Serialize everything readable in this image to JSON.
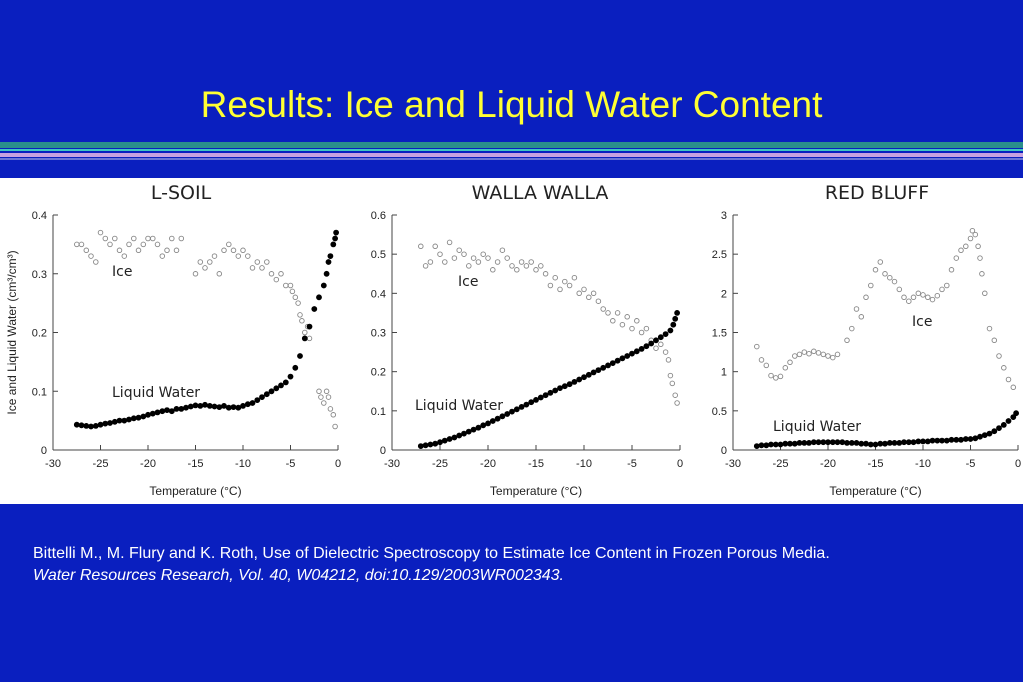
{
  "slide": {
    "title": "Results: Ice and Liquid Water Content",
    "citation_plain": "Bittelli M., M. Flury and K. Roth, Use of Dielectric Spectroscopy to Estimate Ice Content in Frozen Porous Media.",
    "citation_italic": "Water Resources Research, Vol. 40, W04212, doi:10.129/2003WR002343."
  },
  "colors": {
    "background": "#0a1fbf",
    "title": "#ffff33",
    "liquid_marker": "#000000",
    "ice_marker": "#888888"
  },
  "chart_data": [
    {
      "type": "scatter",
      "title": "L-SOIL",
      "xlabel": "Temperature (°C)",
      "ylabel": "Ice and Liquid Water  (cm³/cm³)",
      "xlim": [
        -30,
        0
      ],
      "ylim": [
        0,
        0.4
      ],
      "xticks": [
        "-30",
        "-25",
        "-20",
        "-15",
        "-10",
        "-5",
        "0"
      ],
      "yticks": [
        "0",
        "0.1",
        "0.2",
        "0.3",
        "0.4"
      ],
      "annotations": [
        "Ice",
        "Liquid Water"
      ],
      "series": [
        {
          "name": "Ice",
          "marker": "open",
          "x": [
            -27.5,
            -27,
            -26.5,
            -26,
            -25.5,
            -25,
            -24.5,
            -24,
            -23.5,
            -23,
            -22.5,
            -22,
            -21.5,
            -21,
            -20.5,
            -20,
            -19.5,
            -19,
            -18.5,
            -18,
            -17.5,
            -17,
            -16.5,
            -15,
            -14.5,
            -14,
            -13.5,
            -13,
            -12.5,
            -12,
            -11.5,
            -11,
            -10.5,
            -10,
            -9.5,
            -9,
            -8.5,
            -8,
            -7.5,
            -7,
            -6.5,
            -6,
            -5.5,
            -5,
            -4.8,
            -4.5,
            -4.2,
            -4,
            -3.8,
            -3.5,
            -3.2,
            -3,
            -2,
            -1.8,
            -1.5,
            -1.2,
            -1,
            -0.8,
            -0.5,
            -0.3
          ],
          "y": [
            0.35,
            0.35,
            0.34,
            0.33,
            0.32,
            0.37,
            0.36,
            0.35,
            0.36,
            0.34,
            0.33,
            0.35,
            0.36,
            0.34,
            0.35,
            0.36,
            0.36,
            0.35,
            0.33,
            0.34,
            0.36,
            0.34,
            0.36,
            0.3,
            0.32,
            0.31,
            0.32,
            0.33,
            0.3,
            0.34,
            0.35,
            0.34,
            0.33,
            0.34,
            0.33,
            0.31,
            0.32,
            0.31,
            0.32,
            0.3,
            0.29,
            0.3,
            0.28,
            0.28,
            0.27,
            0.26,
            0.25,
            0.23,
            0.22,
            0.2,
            0.21,
            0.19,
            0.1,
            0.09,
            0.08,
            0.1,
            0.09,
            0.07,
            0.06,
            0.04
          ]
        },
        {
          "name": "Liquid Water",
          "marker": "filled",
          "x": [
            -27.5,
            -27,
            -26.5,
            -26,
            -25.5,
            -25,
            -24.5,
            -24,
            -23.5,
            -23,
            -22.5,
            -22,
            -21.5,
            -21,
            -20.5,
            -20,
            -19.5,
            -19,
            -18.5,
            -18,
            -17.5,
            -17,
            -16.5,
            -16,
            -15.5,
            -15,
            -14.5,
            -14,
            -13.5,
            -13,
            -12.5,
            -12,
            -11.5,
            -11,
            -10.5,
            -10,
            -9.5,
            -9,
            -8.5,
            -8,
            -7.5,
            -7,
            -6.5,
            -6,
            -5.5,
            -5,
            -4.5,
            -4,
            -3.5,
            -3,
            -2.5,
            -2,
            -1.5,
            -1.2,
            -1,
            -0.8,
            -0.5,
            -0.3,
            -0.2
          ],
          "y": [
            0.043,
            0.042,
            0.041,
            0.04,
            0.041,
            0.043,
            0.045,
            0.046,
            0.048,
            0.05,
            0.05,
            0.052,
            0.054,
            0.055,
            0.057,
            0.06,
            0.062,
            0.064,
            0.066,
            0.068,
            0.066,
            0.07,
            0.07,
            0.072,
            0.074,
            0.076,
            0.075,
            0.077,
            0.075,
            0.074,
            0.073,
            0.075,
            0.072,
            0.073,
            0.072,
            0.075,
            0.078,
            0.08,
            0.085,
            0.09,
            0.095,
            0.1,
            0.105,
            0.11,
            0.115,
            0.125,
            0.14,
            0.16,
            0.19,
            0.21,
            0.24,
            0.26,
            0.28,
            0.3,
            0.32,
            0.33,
            0.35,
            0.36,
            0.37
          ]
        }
      ]
    },
    {
      "type": "scatter",
      "title": "WALLA WALLA",
      "xlabel": "Temperature (°C)",
      "ylabel": "",
      "xlim": [
        -30,
        0
      ],
      "ylim": [
        0,
        0.6
      ],
      "xticks": [
        "-30",
        "-25",
        "-20",
        "-15",
        "-10",
        "-5",
        "0"
      ],
      "yticks": [
        "0",
        "0.1",
        "0.2",
        "0.3",
        "0.4",
        "0.5",
        "0.6"
      ],
      "annotations": [
        "Ice",
        "Liquid Water"
      ],
      "series": [
        {
          "name": "Ice",
          "marker": "open",
          "x": [
            -27,
            -26.5,
            -26,
            -25.5,
            -25,
            -24.5,
            -24,
            -23.5,
            -23,
            -22.5,
            -22,
            -21.5,
            -21,
            -20.5,
            -20,
            -19.5,
            -19,
            -18.5,
            -18,
            -17.5,
            -17,
            -16.5,
            -16,
            -15.5,
            -15,
            -14.5,
            -14,
            -13.5,
            -13,
            -12.5,
            -12,
            -11.5,
            -11,
            -10.5,
            -10,
            -9.5,
            -9,
            -8.5,
            -8,
            -7.5,
            -7,
            -6.5,
            -6,
            -5.5,
            -5,
            -4.5,
            -4,
            -3.5,
            -3,
            -2.5,
            -2,
            -1.5,
            -1.2,
            -1,
            -0.8,
            -0.5,
            -0.3
          ],
          "y": [
            0.52,
            0.47,
            0.48,
            0.52,
            0.5,
            0.48,
            0.53,
            0.49,
            0.51,
            0.5,
            0.47,
            0.49,
            0.48,
            0.5,
            0.49,
            0.46,
            0.48,
            0.51,
            0.49,
            0.47,
            0.46,
            0.48,
            0.47,
            0.48,
            0.46,
            0.47,
            0.45,
            0.42,
            0.44,
            0.41,
            0.43,
            0.42,
            0.44,
            0.4,
            0.41,
            0.39,
            0.4,
            0.38,
            0.36,
            0.35,
            0.33,
            0.35,
            0.32,
            0.34,
            0.31,
            0.33,
            0.3,
            0.31,
            0.28,
            0.26,
            0.27,
            0.25,
            0.23,
            0.19,
            0.17,
            0.14,
            0.12
          ]
        },
        {
          "name": "Liquid Water",
          "marker": "filled",
          "x": [
            -27,
            -26.5,
            -26,
            -25.5,
            -25,
            -24.5,
            -24,
            -23.5,
            -23,
            -22.5,
            -22,
            -21.5,
            -21,
            -20.5,
            -20,
            -19.5,
            -19,
            -18.5,
            -18,
            -17.5,
            -17,
            -16.5,
            -16,
            -15.5,
            -15,
            -14.5,
            -14,
            -13.5,
            -13,
            -12.5,
            -12,
            -11.5,
            -11,
            -10.5,
            -10,
            -9.5,
            -9,
            -8.5,
            -8,
            -7.5,
            -7,
            -6.5,
            -6,
            -5.5,
            -5,
            -4.5,
            -4,
            -3.5,
            -3,
            -2.5,
            -2,
            -1.5,
            -1,
            -0.7,
            -0.5,
            -0.3
          ],
          "y": [
            0.01,
            0.012,
            0.014,
            0.016,
            0.02,
            0.024,
            0.028,
            0.032,
            0.037,
            0.042,
            0.047,
            0.052,
            0.057,
            0.063,
            0.068,
            0.074,
            0.08,
            0.086,
            0.092,
            0.098,
            0.104,
            0.11,
            0.116,
            0.122,
            0.128,
            0.134,
            0.14,
            0.146,
            0.152,
            0.158,
            0.163,
            0.168,
            0.174,
            0.18,
            0.186,
            0.192,
            0.198,
            0.204,
            0.21,
            0.216,
            0.222,
            0.228,
            0.234,
            0.24,
            0.246,
            0.252,
            0.258,
            0.265,
            0.272,
            0.28,
            0.288,
            0.296,
            0.305,
            0.32,
            0.335,
            0.35
          ]
        }
      ]
    },
    {
      "type": "scatter",
      "title": "RED BLUFF",
      "xlabel": "Temperature (°C)",
      "ylabel": "",
      "xlim": [
        -30,
        0
      ],
      "ylim": [
        0,
        3
      ],
      "xticks": [
        "-30",
        "-25",
        "-20",
        "-15",
        "-10",
        "-5",
        "0"
      ],
      "yticks": [
        "0",
        "0.5",
        "1",
        "1.5",
        "2",
        "2.5",
        "3"
      ],
      "annotations": [
        "Ice",
        "Liquid Water"
      ],
      "series": [
        {
          "name": "Ice",
          "marker": "open",
          "x": [
            -27.5,
            -27,
            -26.5,
            -26,
            -25.5,
            -25,
            -24.5,
            -24,
            -23.5,
            -23,
            -22.5,
            -22,
            -21.5,
            -21,
            -20.5,
            -20,
            -19.5,
            -19,
            -18,
            -17.5,
            -17,
            -16.5,
            -16,
            -15.5,
            -15,
            -14.5,
            -14,
            -13.5,
            -13,
            -12.5,
            -12,
            -11.5,
            -11,
            -10.5,
            -10,
            -9.5,
            -9,
            -8.5,
            -8,
            -7.5,
            -7,
            -6.5,
            -6,
            -5.5,
            -5,
            -4.8,
            -4.5,
            -4.2,
            -4,
            -3.8,
            -3.5,
            -3,
            -2.5,
            -2,
            -1.5,
            -1,
            -0.5
          ],
          "y": [
            1.32,
            1.15,
            1.08,
            0.95,
            0.92,
            0.94,
            1.05,
            1.12,
            1.2,
            1.22,
            1.25,
            1.23,
            1.26,
            1.24,
            1.22,
            1.2,
            1.18,
            1.22,
            1.4,
            1.55,
            1.8,
            1.7,
            1.95,
            2.1,
            2.3,
            2.4,
            2.25,
            2.2,
            2.15,
            2.05,
            1.95,
            1.9,
            1.95,
            2.0,
            1.98,
            1.95,
            1.92,
            1.97,
            2.05,
            2.1,
            2.3,
            2.45,
            2.55,
            2.6,
            2.7,
            2.8,
            2.75,
            2.6,
            2.45,
            2.25,
            2.0,
            1.55,
            1.4,
            1.2,
            1.05,
            0.9,
            0.8
          ]
        },
        {
          "name": "Liquid Water",
          "marker": "filled",
          "x": [
            -27.5,
            -27,
            -26.5,
            -26,
            -25.5,
            -25,
            -24.5,
            -24,
            -23.5,
            -23,
            -22.5,
            -22,
            -21.5,
            -21,
            -20.5,
            -20,
            -19.5,
            -19,
            -18.5,
            -18,
            -17.5,
            -17,
            -16.5,
            -16,
            -15.5,
            -15,
            -14.5,
            -14,
            -13.5,
            -13,
            -12.5,
            -12,
            -11.5,
            -11,
            -10.5,
            -10,
            -9.5,
            -9,
            -8.5,
            -8,
            -7.5,
            -7,
            -6.5,
            -6,
            -5.5,
            -5,
            -4.5,
            -4,
            -3.5,
            -3,
            -2.5,
            -2,
            -1.5,
            -1,
            -0.5,
            -0.2
          ],
          "y": [
            0.05,
            0.06,
            0.06,
            0.07,
            0.07,
            0.07,
            0.08,
            0.08,
            0.08,
            0.09,
            0.09,
            0.09,
            0.1,
            0.1,
            0.1,
            0.1,
            0.1,
            0.1,
            0.1,
            0.09,
            0.09,
            0.09,
            0.08,
            0.08,
            0.07,
            0.07,
            0.08,
            0.08,
            0.09,
            0.09,
            0.09,
            0.1,
            0.1,
            0.1,
            0.11,
            0.11,
            0.11,
            0.12,
            0.12,
            0.12,
            0.12,
            0.13,
            0.13,
            0.13,
            0.14,
            0.14,
            0.15,
            0.17,
            0.19,
            0.21,
            0.24,
            0.28,
            0.32,
            0.37,
            0.42,
            0.47
          ]
        }
      ]
    }
  ]
}
